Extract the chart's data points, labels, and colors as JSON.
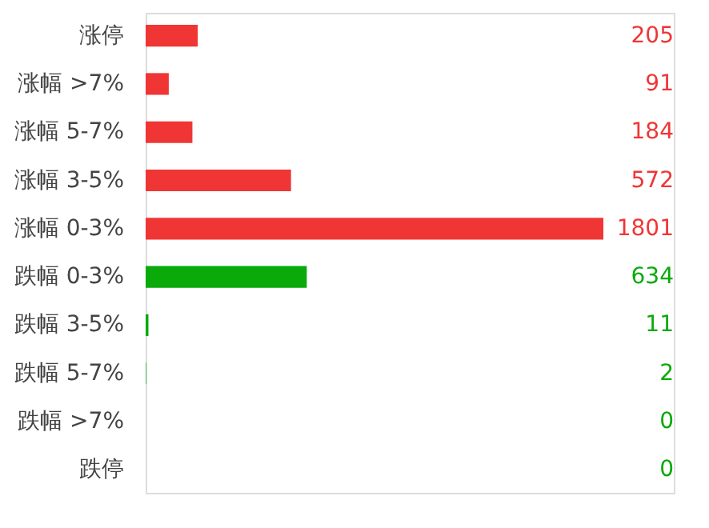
{
  "chart_data": {
    "type": "bar",
    "orientation": "horizontal",
    "categories": [
      "涨停",
      "涨幅 >7%",
      "涨幅 5-7%",
      "涨幅 3-5%",
      "涨幅 0-3%",
      "跌幅 0-3%",
      "跌幅 3-5%",
      "跌幅 5-7%",
      "跌幅 >7%",
      "跌停"
    ],
    "values": [
      205,
      91,
      184,
      572,
      1801,
      634,
      11,
      2,
      0,
      0
    ],
    "colors": [
      "#f03535",
      "#f03535",
      "#f03535",
      "#f03535",
      "#f03535",
      "#0aaa0a",
      "#0aaa0a",
      "#0aaa0a",
      "#0aaa0a",
      "#0aaa0a"
    ],
    "data_labels": true
  }
}
